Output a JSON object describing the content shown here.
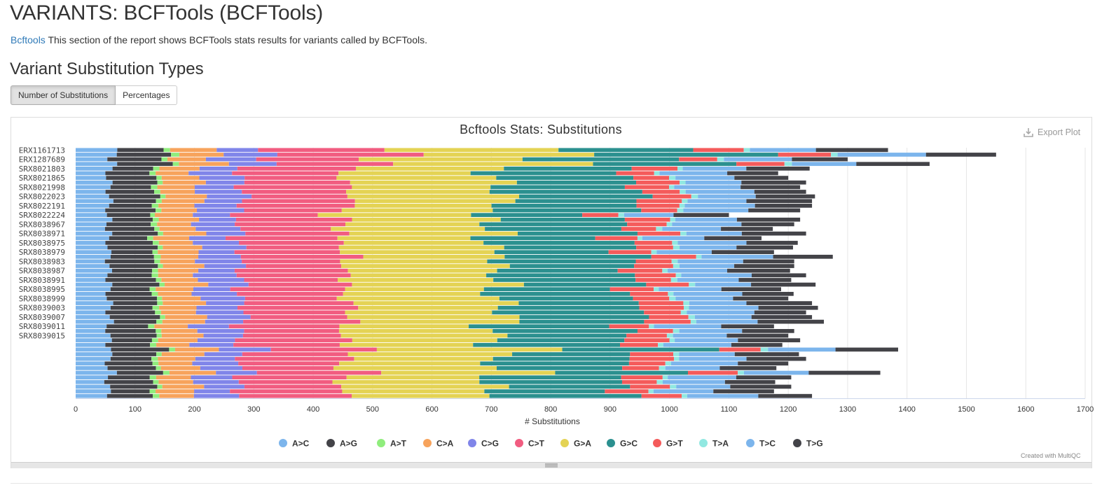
{
  "page": {
    "title": "VARIANTS: BCFTools (BCFTools)",
    "intro_link": "Bcftools",
    "intro_text": " This section of the report shows BCFTools stats results for variants called by BCFTools.",
    "section_title": "Variant Substitution Types"
  },
  "toolbar": {
    "tab_counts": "Number of Substitutions",
    "tab_percentages": "Percentages",
    "export_label": "Export Plot",
    "credits": "Created with MultiQC"
  },
  "chart_data": {
    "type": "bar",
    "orientation": "horizontal",
    "stacked": true,
    "title": "Bcftools Stats: Substitutions",
    "xlabel": "# Substitutions",
    "ylabel": "",
    "xlim": [
      0,
      1700
    ],
    "xticks": [
      0,
      100,
      200,
      300,
      400,
      500,
      600,
      700,
      800,
      900,
      1000,
      1100,
      1200,
      1300,
      1400,
      1500,
      1600,
      1700
    ],
    "grid": true,
    "legend_position": "bottom",
    "category_labels_shown": [
      "ERX1161713",
      "ERX1287689",
      "SRX8021803",
      "SRX8021865",
      "SRX8021998",
      "SRX8022023",
      "SRX8022191",
      "SRX8022224",
      "SRX8038967",
      "SRX8038971",
      "SRX8038975",
      "SRX8038979",
      "SRX8038983",
      "SRX8038987",
      "SRX8038991",
      "SRX8038995",
      "SRX8038999",
      "SRX8039003",
      "SRX8039007",
      "SRX8039011",
      "SRX8039015"
    ],
    "totals": [
      1368,
      1550,
      1300,
      1438,
      1236,
      1183,
      1200,
      1230,
      1220,
      1230,
      1245,
      1240,
      1240,
      1220,
      1100,
      1220,
      1210,
      1174,
      1230,
      1155,
      1216,
      1208,
      1176,
      1275,
      1210,
      1210,
      1203,
      1230,
      1205,
      1246,
      1188,
      1209,
      1200,
      1240,
      1250,
      1230,
      1240,
      1260,
      1176,
      1210,
      1200,
      1220,
      1190,
      1385,
      1218,
      1230,
      1200,
      1180,
      1355,
      1205,
      1178,
      1205,
      1176,
      1240
    ],
    "series": [
      {
        "name": "A>C",
        "color": "#7cb5ec"
      },
      {
        "name": "A>G",
        "color": "#434348"
      },
      {
        "name": "A>T",
        "color": "#90ed7d"
      },
      {
        "name": "C>A",
        "color": "#f7a35c"
      },
      {
        "name": "C>G",
        "color": "#8085e9"
      },
      {
        "name": "C>T",
        "color": "#f15c80"
      },
      {
        "name": "G>A",
        "color": "#e4d354"
      },
      {
        "name": "G>C",
        "color": "#2b908f"
      },
      {
        "name": "G>T",
        "color": "#f45b5b"
      },
      {
        "name": "T>A",
        "color": "#91e8e1"
      },
      {
        "name": "T>C",
        "color": "#7cb5ec"
      },
      {
        "name": "T>G",
        "color": "#434348"
      }
    ],
    "base_fractions": [
      0.046,
      0.063,
      0.008,
      0.053,
      0.058,
      0.146,
      0.21,
      0.186,
      0.056,
      0.008,
      0.086,
      0.08
    ]
  }
}
